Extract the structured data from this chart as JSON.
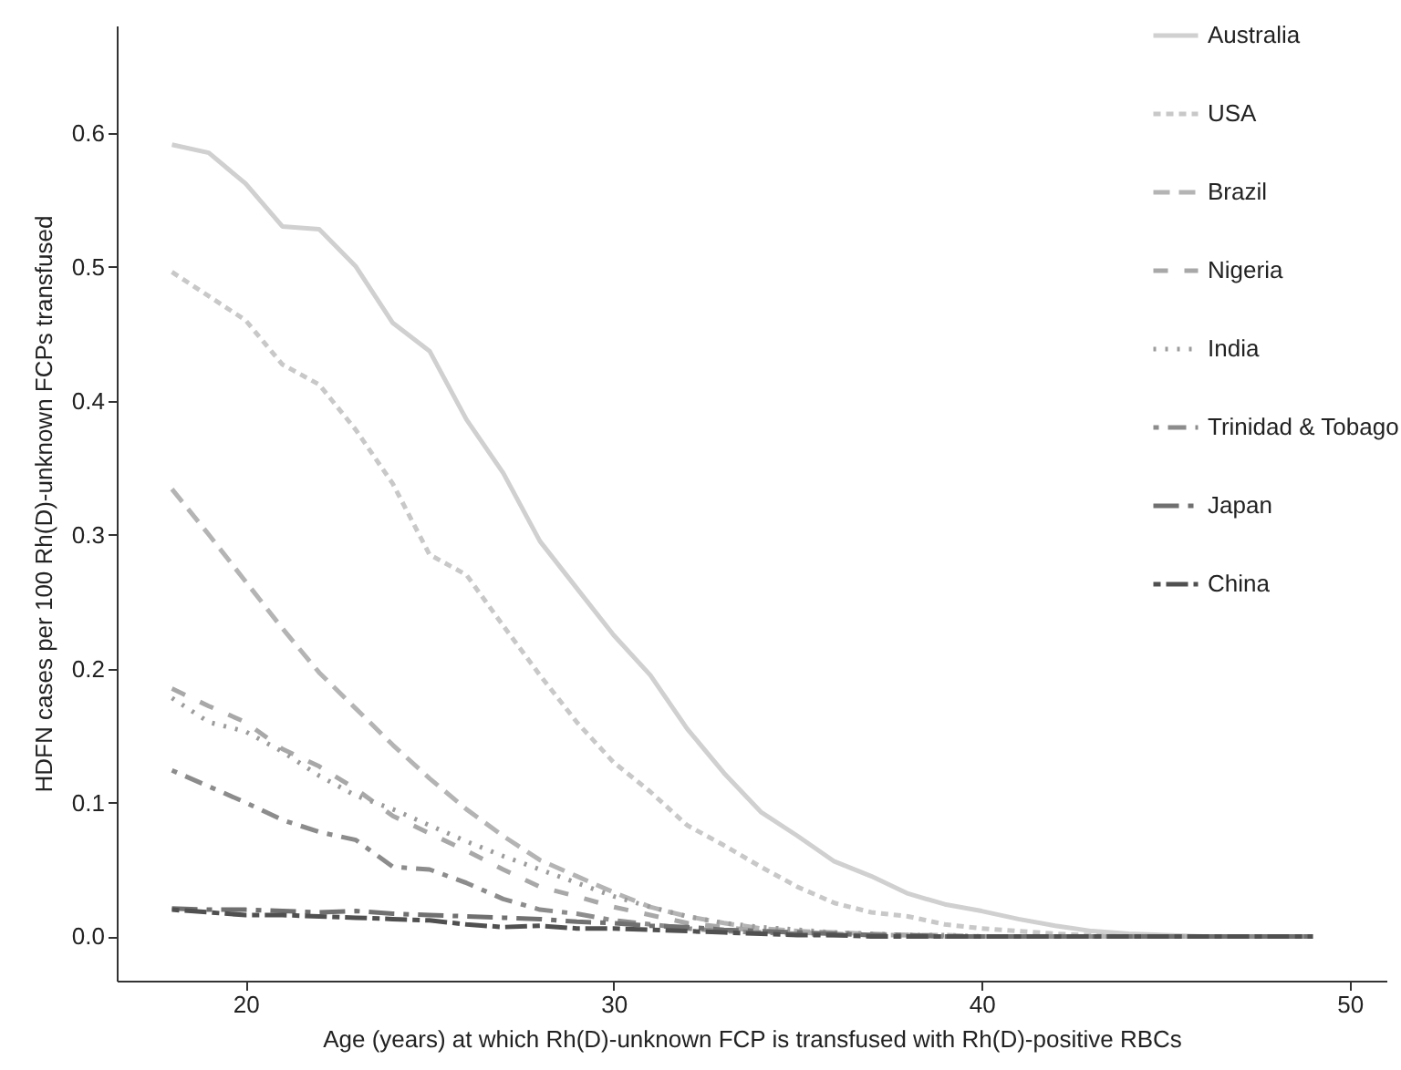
{
  "chart_data": {
    "type": "line",
    "xlabel": "Age (years) at which Rh(D)-unknown FCP is transfused with Rh(D)-positive RBCs",
    "ylabel": "HDFN cases per 100 Rh(D)-unknown FCPs transfused",
    "x": [
      18,
      19,
      20,
      21,
      22,
      23,
      24,
      25,
      26,
      27,
      28,
      29,
      30,
      31,
      32,
      33,
      34,
      35,
      36,
      37,
      38,
      39,
      40,
      41,
      42,
      43,
      44,
      45,
      46,
      47,
      48,
      49
    ],
    "xlim": [
      16.5,
      51
    ],
    "xticks": [
      20,
      30,
      40,
      50
    ],
    "ylim": [
      -0.033,
      0.68
    ],
    "yticks": [
      {
        "value": 0,
        "label": "0.0"
      },
      0.1,
      0.2,
      0.3,
      0.4,
      0.5,
      0.6
    ],
    "grid": false,
    "legend": "top right",
    "marker": "none",
    "series": [
      {
        "name": "Australia",
        "color": "#d0d0d0",
        "line_style": "solid",
        "values": [
          0.591,
          0.585,
          0.562,
          0.53,
          0.528,
          0.5,
          0.458,
          0.437,
          0.386,
          0.346,
          0.295,
          0.26,
          0.225,
          0.195,
          0.155,
          0.122,
          0.093,
          0.075,
          0.056,
          0.045,
          0.032,
          0.024,
          0.019,
          0.013,
          0.008,
          0.004,
          0.002,
          0.001,
          0,
          0,
          0,
          0
        ]
      },
      {
        "name": "USA",
        "color": "#c8c8c8",
        "line_style": "dotted",
        "values": [
          0.496,
          0.478,
          0.46,
          0.427,
          0.412,
          0.378,
          0.338,
          0.285,
          0.27,
          0.232,
          0.195,
          0.16,
          0.13,
          0.108,
          0.083,
          0.068,
          0.052,
          0.037,
          0.025,
          0.018,
          0.015,
          0.009,
          0.006,
          0.004,
          0.002,
          0.001,
          0,
          0,
          0,
          0,
          0,
          0
        ]
      },
      {
        "name": "Brazil",
        "color": "#b4b4b4",
        "line_style": "dashed",
        "values": [
          0.334,
          0.3,
          0.265,
          0.23,
          0.197,
          0.17,
          0.143,
          0.118,
          0.095,
          0.075,
          0.057,
          0.045,
          0.033,
          0.022,
          0.015,
          0.01,
          0.006,
          0.004,
          0.003,
          0.002,
          0.001,
          0.001,
          0,
          0,
          0,
          0,
          0,
          0,
          0,
          0,
          0,
          0
        ]
      },
      {
        "name": "Nigeria",
        "color": "#a8a8a8",
        "line_style": "dashed",
        "values": [
          0.185,
          0.172,
          0.16,
          0.14,
          0.127,
          0.11,
          0.09,
          0.077,
          0.064,
          0.05,
          0.037,
          0.03,
          0.022,
          0.016,
          0.01,
          0.007,
          0.004,
          0.003,
          0.002,
          0.001,
          0.001,
          0,
          0,
          0,
          0,
          0,
          0,
          0,
          0,
          0,
          0,
          0
        ]
      },
      {
        "name": "India",
        "color": "#9c9c9c",
        "line_style": "dotted",
        "values": [
          0.178,
          0.16,
          0.153,
          0.138,
          0.12,
          0.105,
          0.095,
          0.083,
          0.071,
          0.06,
          0.05,
          0.04,
          0.03,
          0.022,
          0.015,
          0.01,
          0.007,
          0.005,
          0.003,
          0.002,
          0.001,
          0.001,
          0,
          0,
          0,
          0,
          0,
          0,
          0,
          0,
          0,
          0
        ]
      },
      {
        "name": "Trinidad & Tobago",
        "color": "#8c8c8c",
        "line_style": "dashed",
        "values": [
          0.124,
          0.112,
          0.1,
          0.087,
          0.078,
          0.072,
          0.052,
          0.05,
          0.04,
          0.028,
          0.02,
          0.017,
          0.012,
          0.009,
          0.006,
          0.004,
          0.003,
          0.002,
          0.001,
          0.001,
          0,
          0,
          0,
          0,
          0,
          0,
          0,
          0,
          0,
          0,
          0,
          0
        ]
      },
      {
        "name": "Japan",
        "color": "#707070",
        "line_style": "dashed",
        "values": [
          0.021,
          0.02,
          0.02,
          0.019,
          0.018,
          0.019,
          0.017,
          0.016,
          0.015,
          0.014,
          0.013,
          0.011,
          0.01,
          0.008,
          0.007,
          0.005,
          0.004,
          0.003,
          0.002,
          0.001,
          0.001,
          0,
          0,
          0,
          0,
          0,
          0,
          0,
          0,
          0,
          0,
          0
        ]
      },
      {
        "name": "China",
        "color": "#505050",
        "line_style": "dashed",
        "values": [
          0.02,
          0.018,
          0.016,
          0.016,
          0.015,
          0.014,
          0.013,
          0.012,
          0.009,
          0.007,
          0.008,
          0.006,
          0.006,
          0.005,
          0.004,
          0.003,
          0.002,
          0.001,
          0.001,
          0,
          0,
          0,
          0,
          0,
          0,
          0,
          0,
          0,
          0,
          0,
          0,
          0
        ]
      }
    ]
  }
}
